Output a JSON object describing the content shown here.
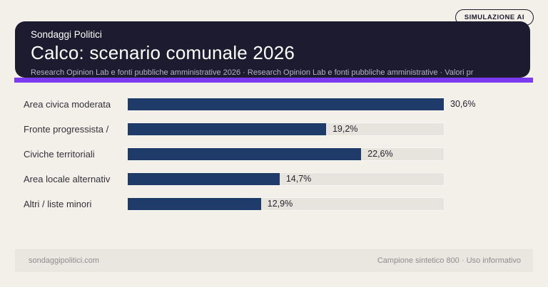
{
  "badge": {
    "label": "SIMULAZIONE AI"
  },
  "header": {
    "kicker": "Sondaggi Politici",
    "title": "Calco: scenario comunale 2026",
    "subtitle": "Research Opinion Lab e fonti pubbliche amministrative 2026 · Research Opinion Lab e fonti pubbliche amministrative · Valori pr"
  },
  "chart_data": {
    "type": "bar",
    "orientation": "horizontal",
    "title": "Calco: scenario comunale 2026",
    "categories": [
      "Area civica moderata",
      "Fronte progressista /",
      "Civiche territoriali",
      "Area locale alternativ",
      "Altri / liste minori"
    ],
    "values": [
      30.6,
      19.2,
      22.6,
      14.7,
      12.9
    ],
    "value_labels": [
      "30,6%",
      "19,2%",
      "22,6%",
      "14,7%",
      "12,9%"
    ],
    "unit": "%",
    "decimal_separator": ",",
    "scale_max": 30.6,
    "grid": false,
    "legend": false,
    "bar_color": "#1f3b6a",
    "track_color": "#e7e4de"
  },
  "footer": {
    "left": "sondaggipolitici.com",
    "right": "Campione sintetico 800 · Uso informativo"
  },
  "colors": {
    "page_background": "#f3efe9",
    "header_background": "#1d1b2f",
    "accent": "#7c3bf0",
    "bar": "#1f3b6a",
    "track": "#e7e4de",
    "footer_band": "#eae7e1"
  }
}
